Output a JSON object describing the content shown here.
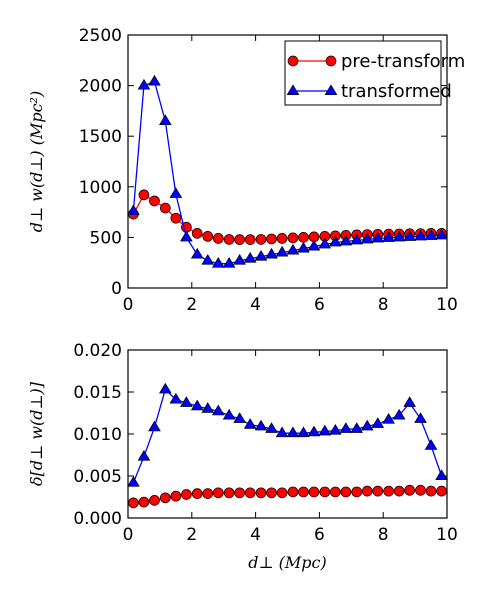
{
  "chart_data": [
    {
      "type": "line",
      "title": "",
      "xlabel": "",
      "ylabel": "d⊥ w(d⊥) (Mpc²)",
      "xlim": [
        0,
        10
      ],
      "ylim": [
        0,
        2500
      ],
      "xticks": [
        "0",
        "2",
        "4",
        "6",
        "8",
        "10"
      ],
      "yticks": [
        "0",
        "500",
        "1000",
        "1500",
        "2000",
        "2500"
      ],
      "grid": false,
      "legend_position": "top-right",
      "series": [
        {
          "name": "pre-transform",
          "color": "#ff0000",
          "marker": "circle",
          "x": [
            0.17,
            0.5,
            0.83,
            1.17,
            1.5,
            1.83,
            2.17,
            2.5,
            2.83,
            3.17,
            3.5,
            3.83,
            4.17,
            4.5,
            4.83,
            5.17,
            5.5,
            5.83,
            6.17,
            6.5,
            6.83,
            7.17,
            7.5,
            7.83,
            8.17,
            8.5,
            8.83,
            9.17,
            9.5,
            9.83
          ],
          "y": [
            730,
            920,
            860,
            790,
            690,
            600,
            540,
            510,
            490,
            480,
            478,
            478,
            480,
            485,
            490,
            495,
            500,
            505,
            510,
            515,
            520,
            525,
            528,
            530,
            532,
            534,
            536,
            538,
            540,
            540
          ]
        },
        {
          "name": "transformed",
          "color": "#0000ff",
          "marker": "triangle",
          "x": [
            0.17,
            0.5,
            0.83,
            1.17,
            1.5,
            1.83,
            2.17,
            2.5,
            2.83,
            3.17,
            3.5,
            3.83,
            4.17,
            4.5,
            4.83,
            5.17,
            5.5,
            5.83,
            6.17,
            6.5,
            6.83,
            7.17,
            7.5,
            7.83,
            8.17,
            8.5,
            8.83,
            9.17,
            9.5,
            9.83
          ],
          "y": [
            760,
            2000,
            2040,
            1650,
            930,
            500,
            330,
            270,
            240,
            240,
            270,
            290,
            310,
            330,
            350,
            370,
            390,
            410,
            430,
            450,
            460,
            470,
            480,
            490,
            495,
            500,
            505,
            510,
            515,
            520
          ]
        }
      ]
    },
    {
      "type": "line",
      "title": "",
      "xlabel": "d⊥ (Mpc)",
      "ylabel": "δ[d⊥ w(d⊥)]",
      "xlim": [
        0,
        10
      ],
      "ylim": [
        0,
        0.02
      ],
      "xticks": [
        "0",
        "2",
        "4",
        "6",
        "8",
        "10"
      ],
      "yticks": [
        "0.000",
        "0.005",
        "0.010",
        "0.015",
        "0.020"
      ],
      "grid": false,
      "series": [
        {
          "name": "pre-transform",
          "color": "#ff0000",
          "marker": "circle",
          "x": [
            0.17,
            0.5,
            0.83,
            1.17,
            1.5,
            1.83,
            2.17,
            2.5,
            2.83,
            3.17,
            3.5,
            3.83,
            4.17,
            4.5,
            4.83,
            5.17,
            5.5,
            5.83,
            6.17,
            6.5,
            6.83,
            7.17,
            7.5,
            7.83,
            8.17,
            8.5,
            8.83,
            9.17,
            9.5,
            9.83
          ],
          "y": [
            0.0018,
            0.0019,
            0.0021,
            0.0024,
            0.0026,
            0.0028,
            0.0029,
            0.0029,
            0.003,
            0.003,
            0.003,
            0.003,
            0.003,
            0.003,
            0.003,
            0.0031,
            0.0031,
            0.0031,
            0.0031,
            0.0031,
            0.0031,
            0.0031,
            0.0032,
            0.0032,
            0.0032,
            0.0032,
            0.0033,
            0.0033,
            0.0032,
            0.0032
          ]
        },
        {
          "name": "transformed",
          "color": "#0000ff",
          "marker": "triangle",
          "x": [
            0.17,
            0.5,
            0.83,
            1.17,
            1.5,
            1.83,
            2.17,
            2.5,
            2.83,
            3.17,
            3.5,
            3.83,
            4.17,
            4.5,
            4.83,
            5.17,
            5.5,
            5.83,
            6.17,
            6.5,
            6.83,
            7.17,
            7.5,
            7.83,
            8.17,
            8.5,
            8.83,
            9.17,
            9.5,
            9.83
          ],
          "y": [
            0.0042,
            0.0073,
            0.0108,
            0.0153,
            0.0141,
            0.0137,
            0.0133,
            0.013,
            0.0127,
            0.0122,
            0.0118,
            0.0111,
            0.0109,
            0.0106,
            0.0101,
            0.0101,
            0.0101,
            0.0102,
            0.0103,
            0.0104,
            0.0106,
            0.0106,
            0.0109,
            0.0112,
            0.0117,
            0.0122,
            0.0137,
            0.0118,
            0.0086,
            0.005
          ]
        }
      ]
    }
  ]
}
